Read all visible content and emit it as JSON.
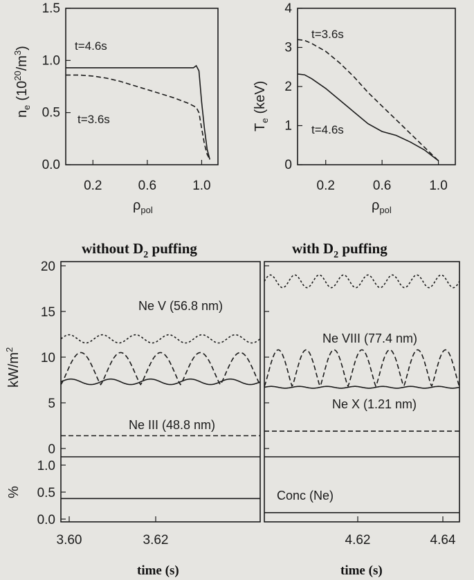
{
  "chart_data": [
    {
      "id": "ne",
      "type": "line",
      "xlim": [
        0,
        1.12
      ],
      "ylim": [
        0,
        1.5
      ],
      "xticks": [
        "0.2",
        "0.6",
        "1.0"
      ],
      "yticks": [
        "0.0",
        "0.5",
        "1.0",
        "1.5"
      ],
      "xlabel": "ρpol",
      "ylabel": "ne (10^20/m^3)",
      "series": [
        {
          "name": "t=4.6s",
          "style": "solid",
          "x": [
            0,
            0.2,
            0.4,
            0.6,
            0.8,
            0.94,
            0.96,
            0.98,
            1.0,
            1.02,
            1.04,
            1.06
          ],
          "y": [
            0.93,
            0.93,
            0.93,
            0.93,
            0.93,
            0.93,
            0.95,
            0.9,
            0.6,
            0.35,
            0.15,
            0.05
          ]
        },
        {
          "name": "t=3.6s",
          "style": "dashed",
          "x": [
            0,
            0.1,
            0.2,
            0.3,
            0.4,
            0.5,
            0.6,
            0.7,
            0.8,
            0.9,
            0.96,
            0.98,
            1.0,
            1.02,
            1.04,
            1.06
          ],
          "y": [
            0.86,
            0.86,
            0.85,
            0.83,
            0.8,
            0.76,
            0.72,
            0.68,
            0.64,
            0.59,
            0.55,
            0.5,
            0.35,
            0.2,
            0.1,
            0.05
          ]
        }
      ]
    },
    {
      "id": "te",
      "type": "line",
      "xlim": [
        0,
        1.12
      ],
      "ylim": [
        0,
        4
      ],
      "xticks": [
        "0.2",
        "0.6",
        "1.0"
      ],
      "yticks": [
        "0",
        "1",
        "2",
        "3",
        "4"
      ],
      "xlabel": "ρpol",
      "ylabel": "Te (keV)",
      "series": [
        {
          "name": "t=3.6s",
          "style": "dashed",
          "x": [
            0,
            0.05,
            0.1,
            0.2,
            0.3,
            0.4,
            0.5,
            0.6,
            0.7,
            0.8,
            0.9,
            1.0
          ],
          "y": [
            3.2,
            3.18,
            3.1,
            2.9,
            2.6,
            2.25,
            1.85,
            1.5,
            1.15,
            0.8,
            0.45,
            0.1
          ]
        },
        {
          "name": "t=4.6s",
          "style": "solid",
          "x": [
            0,
            0.05,
            0.1,
            0.2,
            0.3,
            0.4,
            0.5,
            0.6,
            0.7,
            0.8,
            0.9,
            1.0
          ],
          "y": [
            2.32,
            2.3,
            2.2,
            1.95,
            1.65,
            1.35,
            1.05,
            0.85,
            0.75,
            0.58,
            0.38,
            0.1
          ]
        }
      ]
    },
    {
      "id": "kw",
      "type": "line",
      "ylim": [
        0,
        20
      ],
      "yticks": [
        "0",
        "5",
        "10",
        "15",
        "20"
      ],
      "ylabel": "kW/m^2",
      "panels": [
        "without D2 puffing",
        "with D2 puffing"
      ],
      "annotations": [
        "Ne V (56.8 nm)",
        "Ne VIII (77.4 nm)",
        "Ne X (1.21 nm)",
        "Ne III (48.8 nm)"
      ],
      "series": [
        {
          "name": "Ne V (56.8 nm)",
          "panel": "without D2 puffing",
          "style": "dotted",
          "mean": 12.0,
          "amp": 0.45,
          "periods": 6
        },
        {
          "name": "Ne VIII (77.4 nm)",
          "panel": "without D2 puffing",
          "style": "dashed",
          "high": 10.5,
          "low": 7.0,
          "periods": 5
        },
        {
          "name": "Ne X (1.21 nm)",
          "panel": "without D2 puffing",
          "style": "solid",
          "mean": 7.3,
          "amp": 0.3,
          "periods": 5
        },
        {
          "name": "Ne III (48.8 nm)",
          "panel": "without D2 puffing",
          "style": "dashed",
          "mean": 1.4,
          "amp": 0.05,
          "periods": 0
        },
        {
          "name": "Ne V (56.8 nm)",
          "panel": "with D2 puffing",
          "style": "dotted",
          "mean": 18.3,
          "amp": 0.7,
          "periods": 8
        },
        {
          "name": "Ne VIII (77.4 nm)",
          "panel": "with D2 puffing",
          "style": "dashed",
          "high": 10.8,
          "low": 6.8,
          "periods": 7
        },
        {
          "name": "Ne X (1.21 nm)",
          "panel": "with D2 puffing",
          "style": "solid",
          "mean": 6.7,
          "amp": 0.1,
          "periods": 7
        },
        {
          "name": "Ne III (48.8 nm)",
          "panel": "with D2 puffing",
          "style": "dashed",
          "mean": 1.9,
          "amp": 0.05,
          "periods": 0
        }
      ]
    },
    {
      "id": "conc",
      "type": "line",
      "ylim": [
        0,
        1.0
      ],
      "yticks": [
        "0.0",
        "0.5",
        "1.0"
      ],
      "ylabel": "%",
      "annotation": "Conc (Ne)",
      "series": [
        {
          "name": "Conc (Ne)",
          "panel": "without D2 puffing",
          "style": "solid",
          "y": 0.38
        },
        {
          "name": "Conc (Ne)",
          "panel": "with D2 puffing",
          "style": "solid",
          "y": 0.12
        }
      ]
    }
  ],
  "labels": {
    "ne_t46": "t=4.6s",
    "ne_t36": "t=3.6s",
    "te_t36": "t=3.6s",
    "te_t46": "t=4.6s",
    "ne_axis": "n",
    "ne_axis_sub": "e",
    "ne_axis_unit": "(10",
    "ne_axis_exp": "20",
    "ne_axis_tail": "/m",
    "ne_axis_exp2": "3",
    "ne_axis_close": ")",
    "te_axis": "T",
    "te_axis_sub": "e",
    "te_axis_unit": "(keV)",
    "rho": "ρ",
    "rho_sub": "pol",
    "hdr_left_a": "without D",
    "hdr_sub": "2",
    "hdr_left_b": " puffing",
    "hdr_right_a": "with D",
    "hdr_right_b": " puffing",
    "kw_axis": "kW/m",
    "kw_exp": "2",
    "pct_axis": "%",
    "lbl_ne5": "Ne V (56.8 nm)",
    "lbl_ne8": "Ne VIII (77.4 nm)",
    "lbl_ne10": "Ne X (1.21 nm)",
    "lbl_ne3": "Ne III (48.8 nm)",
    "lbl_conc": "Conc (Ne)",
    "time_left": "time (s)",
    "time_right": "time (s)",
    "tx_left": [
      "3.60",
      "3.62"
    ],
    "tx_right": [
      "4.62",
      "4.64"
    ]
  }
}
